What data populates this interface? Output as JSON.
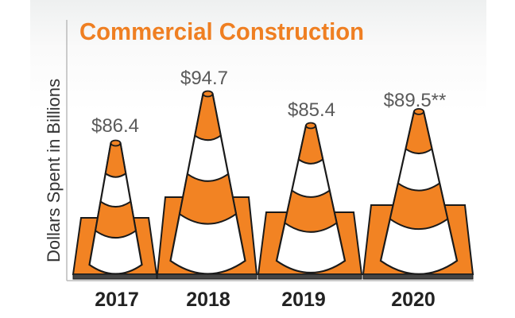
{
  "chart_data": {
    "type": "bar",
    "title": "Commercial Construction",
    "ylabel": "Dollars Spent in Billions",
    "xlabel": "",
    "categories": [
      "2017",
      "2018",
      "2019",
      "2020"
    ],
    "values": [
      86.4,
      94.7,
      85.4,
      89.5
    ],
    "data_labels": [
      "$86.4",
      "$94.7",
      "$85.4",
      "$89.5**"
    ],
    "mark": "traffic cone pictograph",
    "colors": {
      "cone": "#f28323",
      "stripe": "#ffffff",
      "title": "#ef7f22",
      "outline": "#1a1a1a"
    }
  }
}
